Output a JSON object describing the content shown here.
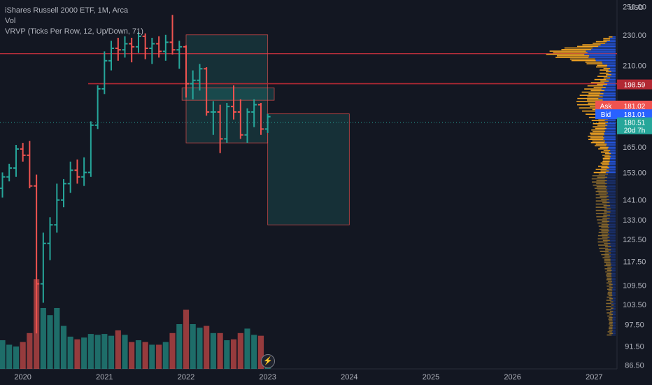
{
  "legend": {
    "title": "iShares Russell 2000 ETF, 1M, Arca",
    "vol": "Vol",
    "vrvp": "VRVP (Ticks Per Row, 12, Up/Down, 71)"
  },
  "currency": "USD",
  "colors": {
    "up": "#26a69a",
    "down": "#ef5350",
    "ask": "#ef5350",
    "bid": "#2962ff",
    "vp_up": "#f5a623",
    "vp_up_dark": "#8a6a2e",
    "vp_blue": "#2962ff",
    "background": "#131722"
  },
  "price_labels": [
    {
      "value": "250.00",
      "price": 250
    },
    {
      "value": "230.00",
      "price": 230
    },
    {
      "value": "210.00",
      "price": 210
    },
    {
      "value": "165.00",
      "price": 165
    },
    {
      "value": "153.00",
      "price": 153
    },
    {
      "value": "141.00",
      "price": 141
    },
    {
      "value": "133.00",
      "price": 133
    },
    {
      "value": "125.50",
      "price": 125.5
    },
    {
      "value": "117.50",
      "price": 117.5
    },
    {
      "value": "109.50",
      "price": 109.5
    },
    {
      "value": "103.50",
      "price": 103.5
    },
    {
      "value": "97.50",
      "price": 97.5
    },
    {
      "value": "91.50",
      "price": 91.5
    },
    {
      "value": "86.50",
      "price": 86.5
    }
  ],
  "price_tags": [
    {
      "name": "level-198",
      "label": "",
      "value": "198.59",
      "price": 198.59,
      "color": "#b22833"
    },
    {
      "name": "ask",
      "label": "Ask",
      "value": "181.02",
      "price": 186.5,
      "color": "#ef5350"
    },
    {
      "name": "bid",
      "label": "Bid",
      "value": "181.01",
      "price": 181.8,
      "color": "#2962ff"
    },
    {
      "name": "last",
      "label": "",
      "value": "180.51",
      "price": 177.5,
      "color": "#26a69a",
      "sub": "20d 7h"
    }
  ],
  "time_labels": [
    {
      "label": "2020",
      "year": 2020.0
    },
    {
      "label": "2021",
      "year": 2021.0
    },
    {
      "label": "2022",
      "year": 2022.0
    },
    {
      "label": "2023",
      "year": 2023.0
    },
    {
      "label": "2024",
      "year": 2024.0
    },
    {
      "label": "2025",
      "year": 2025.0
    },
    {
      "label": "2026",
      "year": 2026.0
    },
    {
      "label": "2027",
      "year": 2027.0
    }
  ],
  "chart_data": {
    "type": "ohlc",
    "title": "iShares Russell 2000 ETF, 1M, Arca",
    "x_range": [
      2019.72,
      2027.28
    ],
    "y_range": [
      85.5,
      255
    ],
    "horizontal_lines": [
      217.5,
      199.0
    ],
    "current_price": 180.51,
    "bars": [
      {
        "t": 2019.75,
        "o": 146,
        "h": 153,
        "l": 142,
        "c": 151,
        "v": 0.32
      },
      {
        "t": 2019.833,
        "o": 151,
        "h": 157,
        "l": 149,
        "c": 155,
        "v": 0.27
      },
      {
        "t": 2019.917,
        "o": 155,
        "h": 166,
        "l": 151,
        "c": 164,
        "v": 0.25
      },
      {
        "t": 2020.0,
        "o": 164,
        "h": 167,
        "l": 158,
        "c": 161,
        "v": 0.3
      },
      {
        "t": 2020.083,
        "o": 161,
        "h": 168,
        "l": 146,
        "c": 147,
        "v": 0.4
      },
      {
        "t": 2020.167,
        "o": 147,
        "h": 152,
        "l": 95,
        "c": 110,
        "v": 1.0
      },
      {
        "t": 2020.25,
        "o": 110,
        "h": 128,
        "l": 104,
        "c": 124,
        "v": 0.68
      },
      {
        "t": 2020.333,
        "o": 124,
        "h": 134,
        "l": 118,
        "c": 131,
        "v": 0.6
      },
      {
        "t": 2020.417,
        "o": 131,
        "h": 148,
        "l": 128,
        "c": 141,
        "v": 0.68
      },
      {
        "t": 2020.5,
        "o": 141,
        "h": 150,
        "l": 138,
        "c": 148,
        "v": 0.48
      },
      {
        "t": 2020.583,
        "o": 148,
        "h": 158,
        "l": 144,
        "c": 154,
        "v": 0.36
      },
      {
        "t": 2020.667,
        "o": 154,
        "h": 159,
        "l": 148,
        "c": 151,
        "v": 0.33
      },
      {
        "t": 2020.75,
        "o": 151,
        "h": 160,
        "l": 147,
        "c": 153,
        "v": 0.35
      },
      {
        "t": 2020.833,
        "o": 153,
        "h": 178,
        "l": 151,
        "c": 176,
        "v": 0.39
      },
      {
        "t": 2020.917,
        "o": 176,
        "h": 198,
        "l": 174,
        "c": 196,
        "v": 0.38
      },
      {
        "t": 2021.0,
        "o": 196,
        "h": 219,
        "l": 193,
        "c": 213,
        "v": 0.39
      },
      {
        "t": 2021.083,
        "o": 213,
        "h": 226,
        "l": 207,
        "c": 221,
        "v": 0.37
      },
      {
        "t": 2021.167,
        "o": 221,
        "h": 228,
        "l": 213,
        "c": 220,
        "v": 0.43
      },
      {
        "t": 2021.25,
        "o": 220,
        "h": 229,
        "l": 215,
        "c": 224,
        "v": 0.38
      },
      {
        "t": 2021.333,
        "o": 224,
        "h": 228,
        "l": 212,
        "c": 222,
        "v": 0.3
      },
      {
        "t": 2021.417,
        "o": 222,
        "h": 232,
        "l": 218,
        "c": 229,
        "v": 0.32
      },
      {
        "t": 2021.5,
        "o": 229,
        "h": 231,
        "l": 214,
        "c": 221,
        "v": 0.3
      },
      {
        "t": 2021.583,
        "o": 221,
        "h": 228,
        "l": 211,
        "c": 224,
        "v": 0.27
      },
      {
        "t": 2021.667,
        "o": 224,
        "h": 229,
        "l": 215,
        "c": 219,
        "v": 0.27
      },
      {
        "t": 2021.75,
        "o": 219,
        "h": 230,
        "l": 213,
        "c": 225,
        "v": 0.3
      },
      {
        "t": 2021.833,
        "o": 225,
        "h": 244,
        "l": 217,
        "c": 220,
        "v": 0.4
      },
      {
        "t": 2021.917,
        "o": 220,
        "h": 226,
        "l": 208,
        "c": 222,
        "v": 0.5
      },
      {
        "t": 2022.0,
        "o": 222,
        "h": 223,
        "l": 191,
        "c": 199,
        "v": 0.66
      },
      {
        "t": 2022.083,
        "o": 199,
        "h": 207,
        "l": 190,
        "c": 201,
        "v": 0.5
      },
      {
        "t": 2022.167,
        "o": 201,
        "h": 211,
        "l": 195,
        "c": 208,
        "v": 0.46
      },
      {
        "t": 2022.25,
        "o": 208,
        "h": 209,
        "l": 181,
        "c": 183,
        "v": 0.48
      },
      {
        "t": 2022.333,
        "o": 183,
        "h": 189,
        "l": 171,
        "c": 183,
        "v": 0.4
      },
      {
        "t": 2022.417,
        "o": 183,
        "h": 187,
        "l": 162,
        "c": 169,
        "v": 0.4
      },
      {
        "t": 2022.5,
        "o": 169,
        "h": 188,
        "l": 167,
        "c": 186,
        "v": 0.32
      },
      {
        "t": 2022.583,
        "o": 186,
        "h": 198,
        "l": 179,
        "c": 183,
        "v": 0.33
      },
      {
        "t": 2022.667,
        "o": 183,
        "h": 190,
        "l": 169,
        "c": 171,
        "v": 0.4
      },
      {
        "t": 2022.75,
        "o": 171,
        "h": 185,
        "l": 167,
        "c": 183,
        "v": 0.45
      },
      {
        "t": 2022.833,
        "o": 183,
        "h": 190,
        "l": 175,
        "c": 187,
        "v": 0.38
      },
      {
        "t": 2022.917,
        "o": 187,
        "h": 188,
        "l": 171,
        "c": 174,
        "v": 0.37
      },
      {
        "t": 2023.0,
        "o": 174,
        "h": 182,
        "l": 172,
        "c": 180.5,
        "v": 0.05
      }
    ],
    "rectangles": [
      {
        "name": "range-box-upper",
        "x1": 2022.0,
        "x2": 2023.0,
        "y1": 167,
        "y2": 230,
        "fill": "rgba(38,166,154,0.18)",
        "stroke": "#ef5350"
      },
      {
        "name": "range-box-zone",
        "x1": 2021.95,
        "x2": 2023.08,
        "y1": 189.5,
        "y2": 196.5,
        "fill": "rgba(38,166,154,0.22)",
        "stroke": "#ef5350"
      },
      {
        "name": "projection-box",
        "x1": 2023.0,
        "x2": 2024.0,
        "y1": 131,
        "y2": 182,
        "fill": "rgba(38,166,154,0.18)",
        "stroke": "#ef5350"
      }
    ]
  }
}
